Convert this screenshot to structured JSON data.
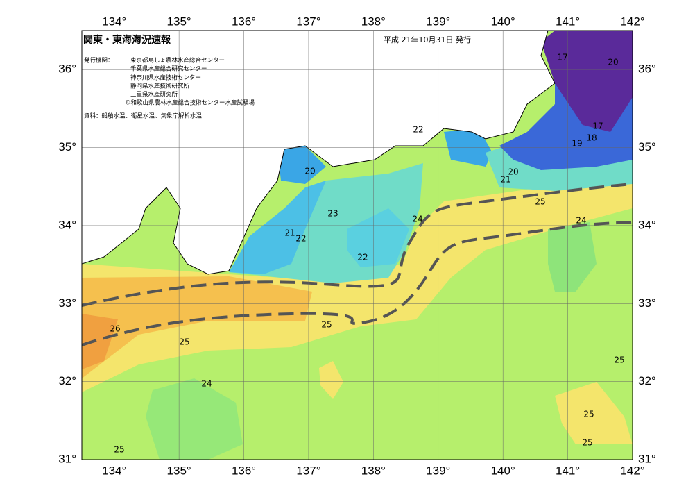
{
  "map": {
    "title": "関東・東海海況速報",
    "date": "平成 21年10月31日 発行",
    "issuer_label": "発行機関：",
    "issuers": [
      "東京都島しょ農林水産総合センター",
      "千葉県水産総合研究センター",
      "神奈川県水産技術センター",
      "静岡県水産技術研究所",
      "三重県水産研究所",
      "©和歌山県農林水産総合技術センター水産試験場"
    ],
    "source": "資料：船舶水温、衛星水温、気象庁解析水温",
    "lonlim": [
      133.5,
      142
    ],
    "latlim": [
      31,
      36.5
    ],
    "lon_ticks": [
      {
        "value": 134,
        "label": "134°"
      },
      {
        "value": 135,
        "label": "135°"
      },
      {
        "value": 136,
        "label": "136°"
      },
      {
        "value": 137,
        "label": "137°"
      },
      {
        "value": 138,
        "label": "138°"
      },
      {
        "value": 139,
        "label": "139°"
      },
      {
        "value": 140,
        "label": "140°"
      },
      {
        "value": 141,
        "label": "141°"
      },
      {
        "value": 142,
        "label": "142°"
      }
    ],
    "lat_ticks": [
      {
        "value": 31,
        "label": "31°"
      },
      {
        "value": 32,
        "label": "32°"
      },
      {
        "value": 33,
        "label": "33°"
      },
      {
        "value": 34,
        "label": "34°"
      },
      {
        "value": 35,
        "label": "35°"
      },
      {
        "value": 36,
        "label": "36°"
      }
    ],
    "contour_labels": [
      17,
      20,
      17,
      18,
      19,
      22,
      20,
      20,
      21,
      25,
      23,
      24,
      24,
      21,
      22,
      22,
      26,
      25,
      25,
      25,
      24,
      25,
      25,
      25
    ]
  }
}
